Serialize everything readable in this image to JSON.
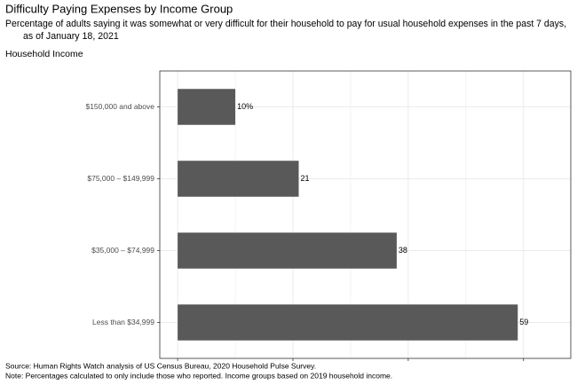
{
  "chart_data": {
    "type": "hbar",
    "title": "Difficulty Paying Expenses by Income Group",
    "subtitle": [
      "Percentage of adults saying it was somewhat or very difficult for their household to pay for usual household expenses in the past 7 days,",
      "as of January 18, 2021"
    ],
    "y_label": "Household Income",
    "categories": [
      "$150,000 and above",
      "$75,000 – $149,999",
      "$35,000 – $74,999",
      "Less than $34,999"
    ],
    "values": [
      10,
      21,
      38,
      59
    ],
    "value_labels": [
      "10%",
      "21",
      "38",
      "59"
    ],
    "color": "#595959",
    "xlim": [
      -3.1,
      68.2
    ],
    "xticks": [
      0,
      20,
      40,
      60
    ],
    "minor_xticks": [
      10,
      30,
      50
    ],
    "grid": true,
    "caption": [
      "Source: Human Rights Watch analysis of US Census Bureau, 2020 Household Pulse Survey.",
      "Note: Percentages calculated to only include those who reported. Income groups based on 2019 household income."
    ]
  }
}
